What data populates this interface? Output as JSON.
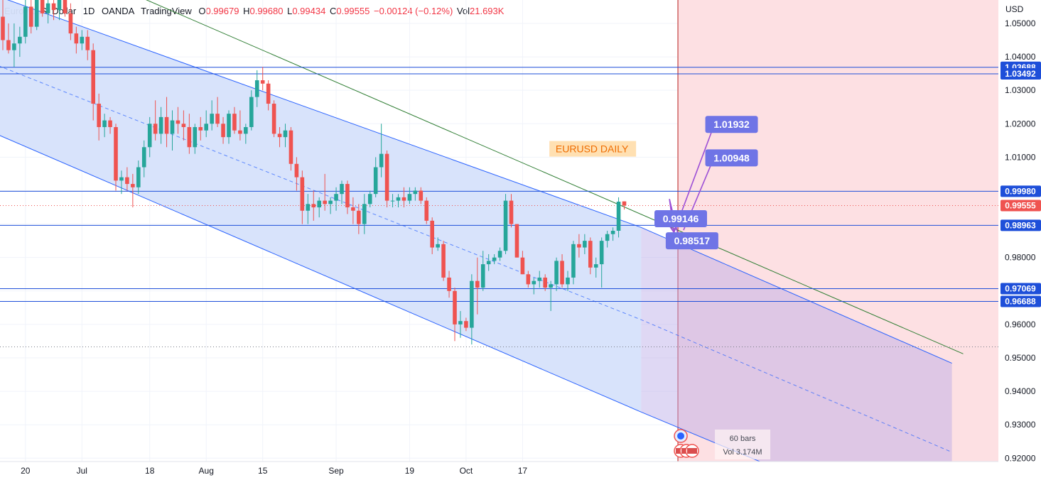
{
  "header": {
    "symbol": "Euro / U.S. Dollar",
    "timeframe": "1D",
    "broker": "OANDA",
    "platform": "TradingView",
    "open_label": "O",
    "open": "0.99679",
    "high_label": "H",
    "high": "0.99680",
    "low_label": "L",
    "low": "0.99434",
    "close_label": "C",
    "close": "0.99555",
    "change": "−0.00124 (−0.12%)",
    "vol_label": "Vol",
    "vol": "21.693K"
  },
  "colors": {
    "up": "#26a69a",
    "down": "#ef5350",
    "channel_fill": "#d6e2fb",
    "channel_line": "#2962ff",
    "hline": "#1e4fd9",
    "future_zone": "#fde0e3",
    "trend": "#2e7d32",
    "callout": "#6f74e6",
    "arrow": "#9c4fd6"
  },
  "chart_data": {
    "type": "candlestick",
    "title": "EURUSD DAILY",
    "currency": "USD",
    "ylim": [
      0.919,
      1.057
    ],
    "y_ticks": [
      "1.05000",
      "1.04000",
      "1.03000",
      "1.02000",
      "1.01000",
      "1.00000",
      "0.99000",
      "0.98000",
      "0.97000",
      "0.96000",
      "0.95000",
      "0.94000",
      "0.93000",
      "0.92000"
    ],
    "x_ticks": [
      {
        "label": "20",
        "bar": 4
      },
      {
        "label": "Jul",
        "bar": 14
      },
      {
        "label": "18",
        "bar": 26
      },
      {
        "label": "Aug",
        "bar": 36
      },
      {
        "label": "15",
        "bar": 46
      },
      {
        "label": "Sep",
        "bar": 59
      },
      {
        "label": "19",
        "bar": 72
      },
      {
        "label": "Oct",
        "bar": 82
      },
      {
        "label": "17",
        "bar": 92
      }
    ],
    "candles": [
      {
        "o": 1.052,
        "h": 1.06,
        "l": 1.042,
        "c": 1.045
      },
      {
        "o": 1.045,
        "h": 1.05,
        "l": 1.041,
        "c": 1.042
      },
      {
        "o": 1.042,
        "h": 1.05,
        "l": 1.037,
        "c": 1.044
      },
      {
        "o": 1.044,
        "h": 1.049,
        "l": 1.04,
        "c": 1.046
      },
      {
        "o": 1.046,
        "h": 1.058,
        "l": 1.044,
        "c": 1.055
      },
      {
        "o": 1.055,
        "h": 1.061,
        "l": 1.047,
        "c": 1.049
      },
      {
        "o": 1.049,
        "h": 1.06,
        "l": 1.048,
        "c": 1.058
      },
      {
        "o": 1.058,
        "h": 1.062,
        "l": 1.052,
        "c": 1.053
      },
      {
        "o": 1.053,
        "h": 1.06,
        "l": 1.05,
        "c": 1.056
      },
      {
        "o": 1.056,
        "h": 1.061,
        "l": 1.051,
        "c": 1.054
      },
      {
        "o": 1.054,
        "h": 1.062,
        "l": 1.051,
        "c": 1.057
      },
      {
        "o": 1.057,
        "h": 1.064,
        "l": 1.052,
        "c": 1.053
      },
      {
        "o": 1.053,
        "h": 1.056,
        "l": 1.045,
        "c": 1.047
      },
      {
        "o": 1.047,
        "h": 1.049,
        "l": 1.041,
        "c": 1.044
      },
      {
        "o": 1.044,
        "h": 1.048,
        "l": 1.042,
        "c": 1.046
      },
      {
        "o": 1.046,
        "h": 1.048,
        "l": 1.039,
        "c": 1.042
      },
      {
        "o": 1.042,
        "h": 1.044,
        "l": 1.021,
        "c": 1.026
      },
      {
        "o": 1.026,
        "h": 1.029,
        "l": 1.015,
        "c": 1.019
      },
      {
        "o": 1.019,
        "h": 1.023,
        "l": 1.016,
        "c": 1.021
      },
      {
        "o": 1.021,
        "h": 1.022,
        "l": 1.017,
        "c": 1.019
      },
      {
        "o": 1.019,
        "h": 1.02,
        "l": 1.0,
        "c": 1.003
      },
      {
        "o": 1.003,
        "h": 1.006,
        "l": 0.999,
        "c": 1.004
      },
      {
        "o": 1.004,
        "h": 1.007,
        "l": 1.0,
        "c": 1.002
      },
      {
        "o": 1.002,
        "h": 1.005,
        "l": 0.995,
        "c": 1.001
      },
      {
        "o": 1.001,
        "h": 1.009,
        "l": 0.999,
        "c": 1.007
      },
      {
        "o": 1.007,
        "h": 1.015,
        "l": 1.004,
        "c": 1.013
      },
      {
        "o": 1.013,
        "h": 1.022,
        "l": 1.01,
        "c": 1.02
      },
      {
        "o": 1.02,
        "h": 1.027,
        "l": 1.015,
        "c": 1.017
      },
      {
        "o": 1.017,
        "h": 1.025,
        "l": 1.014,
        "c": 1.022
      },
      {
        "o": 1.022,
        "h": 1.028,
        "l": 1.013,
        "c": 1.017
      },
      {
        "o": 1.017,
        "h": 1.024,
        "l": 1.012,
        "c": 1.021
      },
      {
        "o": 1.021,
        "h": 1.025,
        "l": 1.017,
        "c": 1.02
      },
      {
        "o": 1.02,
        "h": 1.024,
        "l": 1.015,
        "c": 1.019
      },
      {
        "o": 1.019,
        "h": 1.023,
        "l": 1.011,
        "c": 1.013
      },
      {
        "o": 1.013,
        "h": 1.02,
        "l": 1.011,
        "c": 1.019
      },
      {
        "o": 1.019,
        "h": 1.022,
        "l": 1.015,
        "c": 1.018
      },
      {
        "o": 1.018,
        "h": 1.024,
        "l": 1.016,
        "c": 1.02
      },
      {
        "o": 1.02,
        "h": 1.027,
        "l": 1.018,
        "c": 1.023
      },
      {
        "o": 1.023,
        "h": 1.028,
        "l": 1.019,
        "c": 1.02
      },
      {
        "o": 1.02,
        "h": 1.022,
        "l": 1.014,
        "c": 1.016
      },
      {
        "o": 1.016,
        "h": 1.024,
        "l": 1.014,
        "c": 1.023
      },
      {
        "o": 1.023,
        "h": 1.025,
        "l": 1.017,
        "c": 1.018
      },
      {
        "o": 1.018,
        "h": 1.024,
        "l": 1.015,
        "c": 1.017
      },
      {
        "o": 1.017,
        "h": 1.02,
        "l": 1.014,
        "c": 1.019
      },
      {
        "o": 1.019,
        "h": 1.03,
        "l": 1.018,
        "c": 1.028
      },
      {
        "o": 1.028,
        "h": 1.036,
        "l": 1.025,
        "c": 1.033
      },
      {
        "o": 1.033,
        "h": 1.037,
        "l": 1.03,
        "c": 1.032
      },
      {
        "o": 1.032,
        "h": 1.033,
        "l": 1.024,
        "c": 1.026
      },
      {
        "o": 1.026,
        "h": 1.027,
        "l": 1.016,
        "c": 1.017
      },
      {
        "o": 1.017,
        "h": 1.019,
        "l": 1.013,
        "c": 1.016
      },
      {
        "o": 1.016,
        "h": 1.02,
        "l": 1.013,
        "c": 1.018
      },
      {
        "o": 1.018,
        "h": 1.019,
        "l": 1.006,
        "c": 1.008
      },
      {
        "o": 1.008,
        "h": 1.01,
        "l": 1.0,
        "c": 1.004
      },
      {
        "o": 1.004,
        "h": 1.006,
        "l": 0.99,
        "c": 0.994
      },
      {
        "o": 0.994,
        "h": 0.999,
        "l": 0.99,
        "c": 0.996
      },
      {
        "o": 0.996,
        "h": 1.0,
        "l": 0.991,
        "c": 0.995
      },
      {
        "o": 0.995,
        "h": 0.998,
        "l": 0.992,
        "c": 0.997
      },
      {
        "o": 0.997,
        "h": 1.005,
        "l": 0.994,
        "c": 0.996
      },
      {
        "o": 0.996,
        "h": 0.998,
        "l": 0.993,
        "c": 0.997
      },
      {
        "o": 0.997,
        "h": 1.001,
        "l": 0.994,
        "c": 0.999
      },
      {
        "o": 0.999,
        "h": 1.003,
        "l": 0.996,
        "c": 1.002
      },
      {
        "o": 1.002,
        "h": 1.003,
        "l": 0.993,
        "c": 0.995
      },
      {
        "o": 0.995,
        "h": 0.998,
        "l": 0.99,
        "c": 0.994
      },
      {
        "o": 0.994,
        "h": 0.996,
        "l": 0.987,
        "c": 0.99
      },
      {
        "o": 0.99,
        "h": 0.999,
        "l": 0.987,
        "c": 0.996
      },
      {
        "o": 0.996,
        "h": 1.0,
        "l": 0.995,
        "c": 0.999
      },
      {
        "o": 0.999,
        "h": 1.01,
        "l": 0.998,
        "c": 1.007
      },
      {
        "o": 1.007,
        "h": 1.02,
        "l": 1.004,
        "c": 1.011
      },
      {
        "o": 1.011,
        "h": 1.012,
        "l": 0.995,
        "c": 0.997
      },
      {
        "o": 0.997,
        "h": 0.999,
        "l": 0.995,
        "c": 0.997
      },
      {
        "o": 0.997,
        "h": 0.999,
        "l": 0.995,
        "c": 0.998
      },
      {
        "o": 0.998,
        "h": 1.001,
        "l": 0.995,
        "c": 0.997
      },
      {
        "o": 0.997,
        "h": 1.001,
        "l": 0.996,
        "c": 0.999
      },
      {
        "o": 0.999,
        "h": 1.001,
        "l": 0.997,
        "c": 1.0
      },
      {
        "o": 1.0,
        "h": 1.001,
        "l": 0.996,
        "c": 0.997
      },
      {
        "o": 0.997,
        "h": 0.998,
        "l": 0.99,
        "c": 0.991
      },
      {
        "o": 0.991,
        "h": 0.992,
        "l": 0.981,
        "c": 0.983
      },
      {
        "o": 0.983,
        "h": 0.986,
        "l": 0.982,
        "c": 0.984
      },
      {
        "o": 0.984,
        "h": 0.985,
        "l": 0.973,
        "c": 0.974
      },
      {
        "o": 0.974,
        "h": 0.976,
        "l": 0.968,
        "c": 0.97
      },
      {
        "o": 0.97,
        "h": 0.971,
        "l": 0.955,
        "c": 0.96
      },
      {
        "o": 0.96,
        "h": 0.964,
        "l": 0.956,
        "c": 0.961
      },
      {
        "o": 0.961,
        "h": 0.962,
        "l": 0.958,
        "c": 0.959
      },
      {
        "o": 0.959,
        "h": 0.975,
        "l": 0.954,
        "c": 0.973
      },
      {
        "o": 0.973,
        "h": 0.98,
        "l": 0.963,
        "c": 0.971
      },
      {
        "o": 0.971,
        "h": 0.982,
        "l": 0.97,
        "c": 0.978
      },
      {
        "o": 0.978,
        "h": 0.981,
        "l": 0.976,
        "c": 0.979
      },
      {
        "o": 0.979,
        "h": 0.981,
        "l": 0.978,
        "c": 0.98
      },
      {
        "o": 0.98,
        "h": 0.983,
        "l": 0.979,
        "c": 0.982
      },
      {
        "o": 0.982,
        "h": 0.999,
        "l": 0.981,
        "c": 0.997
      },
      {
        "o": 0.997,
        "h": 0.999,
        "l": 0.989,
        "c": 0.99
      },
      {
        "o": 0.99,
        "h": 0.99,
        "l": 0.98,
        "c": 0.98
      },
      {
        "o": 0.98,
        "h": 0.982,
        "l": 0.975,
        "c": 0.975
      },
      {
        "o": 0.975,
        "h": 0.976,
        "l": 0.971,
        "c": 0.972
      },
      {
        "o": 0.972,
        "h": 0.974,
        "l": 0.969,
        "c": 0.973
      },
      {
        "o": 0.973,
        "h": 0.976,
        "l": 0.971,
        "c": 0.974
      },
      {
        "o": 0.974,
        "h": 0.975,
        "l": 0.97,
        "c": 0.971
      },
      {
        "o": 0.971,
        "h": 0.973,
        "l": 0.964,
        "c": 0.972
      },
      {
        "o": 0.972,
        "h": 0.98,
        "l": 0.97,
        "c": 0.979
      },
      {
        "o": 0.979,
        "h": 0.981,
        "l": 0.971,
        "c": 0.972
      },
      {
        "o": 0.972,
        "h": 0.976,
        "l": 0.97,
        "c": 0.974
      },
      {
        "o": 0.974,
        "h": 0.985,
        "l": 0.972,
        "c": 0.984
      },
      {
        "o": 0.984,
        "h": 0.987,
        "l": 0.98,
        "c": 0.983
      },
      {
        "o": 0.983,
        "h": 0.987,
        "l": 0.981,
        "c": 0.985
      },
      {
        "o": 0.985,
        "h": 0.986,
        "l": 0.975,
        "c": 0.977
      },
      {
        "o": 0.977,
        "h": 0.98,
        "l": 0.974,
        "c": 0.978
      },
      {
        "o": 0.978,
        "h": 0.986,
        "l": 0.971,
        "c": 0.985
      },
      {
        "o": 0.985,
        "h": 0.988,
        "l": 0.983,
        "c": 0.987
      },
      {
        "o": 0.987,
        "h": 0.989,
        "l": 0.985,
        "c": 0.988
      },
      {
        "o": 0.988,
        "h": 0.998,
        "l": 0.986,
        "c": 0.9967
      },
      {
        "o": 0.99679,
        "h": 0.9968,
        "l": 0.99434,
        "c": 0.99555
      }
    ],
    "channel": {
      "upper": [
        [
          -4,
          1.06
        ],
        [
          113,
          0.989
        ],
        [
          168,
          0.9484
        ]
      ],
      "lower": [
        [
          -4,
          1.019
        ],
        [
          113,
          0.9338
        ],
        [
          134,
          0.919
        ]
      ],
      "mid": [
        [
          -4,
          1.0395
        ],
        [
          113,
          0.9614
        ],
        [
          168,
          0.9218
        ]
      ]
    },
    "trendline": [
      [
        20,
        1.061
      ],
      [
        170,
        0.9512
      ]
    ],
    "hlines": [
      1.03688,
      1.03492,
      0.9998,
      0.98963,
      0.97069,
      0.96688
    ],
    "dotted_lines": [
      0.99555,
      0.9533
    ],
    "price_tags": [
      {
        "value": 1.03688,
        "label": "1.03688",
        "color": "#1e4fd9"
      },
      {
        "value": 1.03492,
        "label": "1.03492",
        "color": "#1e4fd9"
      },
      {
        "value": 0.9998,
        "label": "0.99980",
        "color": "#1e4fd9"
      },
      {
        "value": 0.99555,
        "label": "0.99555",
        "color": "#ef5350"
      },
      {
        "value": 0.98963,
        "label": "0.98963",
        "color": "#1e4fd9"
      },
      {
        "value": 0.97069,
        "label": "0.97069",
        "color": "#1e4fd9"
      },
      {
        "value": 0.96688,
        "label": "0.96688",
        "color": "#1e4fd9"
      }
    ],
    "callouts": [
      {
        "label": "1.01932",
        "bar": 129,
        "value": 1.0198
      },
      {
        "label": "1.00948",
        "bar": 129,
        "value": 1.0098
      },
      {
        "label": "0.99146",
        "bar": 120,
        "value": 0.9916
      },
      {
        "label": "0.98517",
        "bar": 122,
        "value": 0.985
      }
    ],
    "arrows": [
      {
        "from": [
          118,
          0.9975
        ],
        "to": [
          118.8,
          0.9876
        ]
      },
      {
        "from": [
          118.8,
          0.9876
        ],
        "to": [
          126,
          1.02
        ]
      },
      {
        "from": [
          120.5,
          0.9882
        ],
        "to": [
          126,
          1.0103
        ]
      },
      {
        "from": [
          118,
          0.9975
        ],
        "to": [
          119.8,
          0.9849
        ]
      }
    ],
    "forecast": {
      "start_bar": 119.5,
      "end_bar": 175,
      "bars_label": "60 bars",
      "vol_label": "Vol 3.174M"
    },
    "label_box": {
      "text": "EURUSD DAILY",
      "bar": 97,
      "value": 1.0125
    }
  }
}
